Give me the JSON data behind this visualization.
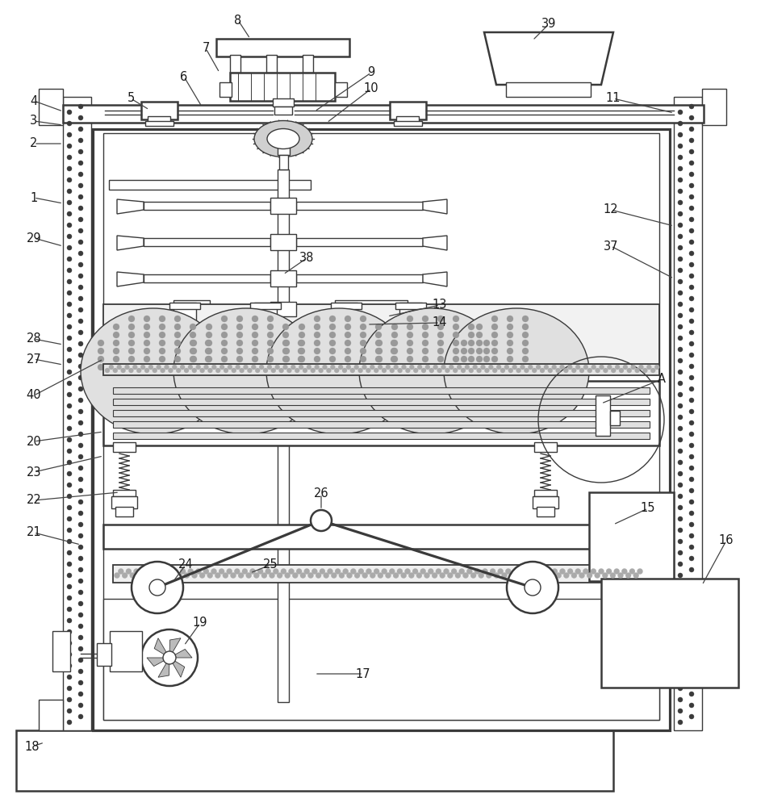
{
  "bg_color": "#ffffff",
  "lc": "#3a3a3a",
  "gray1": "#888888",
  "gray2": "#cccccc",
  "gray3": "#e8e8e8",
  "lw_main": 1.8,
  "lw_thin": 1.0,
  "lw_med": 1.3
}
